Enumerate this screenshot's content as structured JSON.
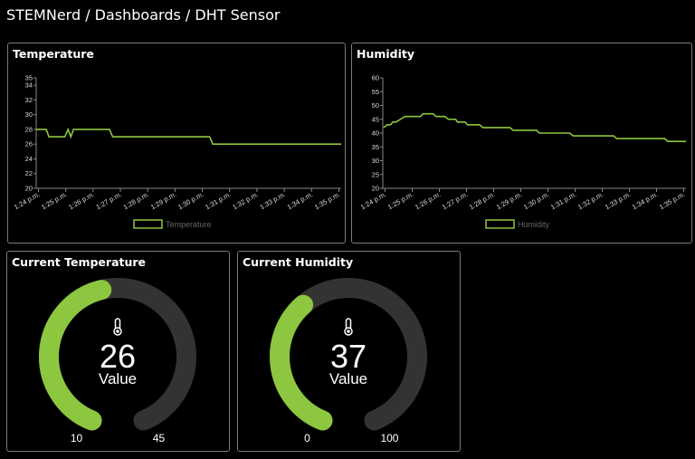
{
  "breadcrumb": "STEMNerd / Dashboards / DHT Sensor",
  "colors": {
    "accent": "#8dc63f",
    "track": "#333333",
    "border": "#7a7a7a"
  },
  "chart_data": [
    {
      "type": "line",
      "title": "Temperature",
      "legend": "Temperature",
      "legend_position": "bottom",
      "ylim": [
        20,
        35
      ],
      "yticks": [
        "20",
        "22",
        "24",
        "26",
        "28",
        "30",
        "32",
        "34",
        "35"
      ],
      "xlim": [
        "13:23:55",
        "13:35:05"
      ],
      "xticks": [
        "1:24 p.m.",
        "1:25 p.m.",
        "1:26 p.m.",
        "1:27 p.m.",
        "1:28 p.m.",
        "1:29 p.m.",
        "1:30 p.m.",
        "1:31 p.m.",
        "1:32 p.m.",
        "1:33 p.m.",
        "1:34 p.m.",
        "1:35 p.m."
      ],
      "series": [
        {
          "name": "Temperature",
          "points": [
            [
              "13:23:55",
              28
            ],
            [
              "13:24:17",
              28
            ],
            [
              "13:24:23",
              27
            ],
            [
              "13:24:58",
              27
            ],
            [
              "13:25:05",
              28
            ],
            [
              "13:25:11",
              27
            ],
            [
              "13:25:17",
              28
            ],
            [
              "13:26:36",
              28
            ],
            [
              "13:26:43",
              27
            ],
            [
              "13:30:16",
              27
            ],
            [
              "13:30:23",
              26
            ],
            [
              "13:35:05",
              26
            ]
          ]
        }
      ]
    },
    {
      "type": "line",
      "title": "Humidity",
      "legend": "Humidity",
      "legend_position": "bottom",
      "ylim": [
        20,
        60
      ],
      "yticks": [
        "20",
        "25",
        "30",
        "35",
        "40",
        "45",
        "50",
        "55",
        "60"
      ],
      "xlim": [
        "13:23:55",
        "13:35:05"
      ],
      "xticks": [
        "1:24 p.m.",
        "1:25 p.m.",
        "1:26 p.m.",
        "1:27 p.m.",
        "1:28 p.m.",
        "1:29 p.m.",
        "1:30 p.m.",
        "1:31 p.m.",
        "1:32 p.m.",
        "1:33 p.m.",
        "1:34 p.m.",
        "1:35 p.m."
      ],
      "series": [
        {
          "name": "Humidity",
          "points": [
            [
              "13:23:57",
              42
            ],
            [
              "13:24:05",
              43
            ],
            [
              "13:24:12",
              43
            ],
            [
              "13:24:17",
              44
            ],
            [
              "13:24:24",
              44
            ],
            [
              "13:24:34",
              45
            ],
            [
              "13:24:44",
              46
            ],
            [
              "13:25:18",
              46
            ],
            [
              "13:25:24",
              47
            ],
            [
              "13:25:46",
              47
            ],
            [
              "13:25:53",
              46
            ],
            [
              "13:26:12",
              46
            ],
            [
              "13:26:20",
              45
            ],
            [
              "13:26:36",
              45
            ],
            [
              "13:26:40",
              44
            ],
            [
              "13:26:57",
              44
            ],
            [
              "13:27:02",
              43
            ],
            [
              "13:27:29",
              43
            ],
            [
              "13:27:36",
              42
            ],
            [
              "13:28:36",
              42
            ],
            [
              "13:28:43",
              41
            ],
            [
              "13:29:35",
              41
            ],
            [
              "13:29:41",
              40
            ],
            [
              "13:30:48",
              40
            ],
            [
              "13:30:56",
              39
            ],
            [
              "13:32:25",
              39
            ],
            [
              "13:32:32",
              38
            ],
            [
              "13:34:18",
              38
            ],
            [
              "13:34:25",
              37
            ],
            [
              "13:35:05",
              37
            ]
          ]
        }
      ]
    }
  ],
  "gauges": [
    {
      "title": "Current Temperature",
      "value": 26,
      "value_text": "26",
      "label": "Value",
      "min": 10,
      "max": 45,
      "min_text": "10",
      "max_text": "45",
      "icon": "thermometer-icon"
    },
    {
      "title": "Current Humidity",
      "value": 37,
      "value_text": "37",
      "label": "Value",
      "min": 0,
      "max": 100,
      "min_text": "0",
      "max_text": "100",
      "icon": "thermometer-icon"
    }
  ]
}
